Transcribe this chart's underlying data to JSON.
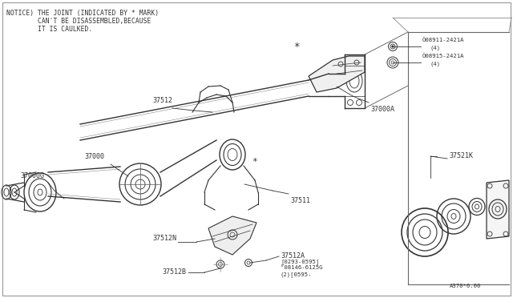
{
  "bg_color": "#ffffff",
  "border_color": "#aaaaaa",
  "line_color": "#333333",
  "text_color": "#333333",
  "notice_line1": "NOTICE) THE JOINT (INDICATED BY * MARK)",
  "notice_line2": "        CAN'T BE DISASSEMBLED,BECAUSE",
  "notice_line3": "        IT IS CAULKED.",
  "bottom_ref": "A370*0.00",
  "fs_label": 6.0,
  "fs_tiny": 5.2,
  "fs_notice": 5.8
}
